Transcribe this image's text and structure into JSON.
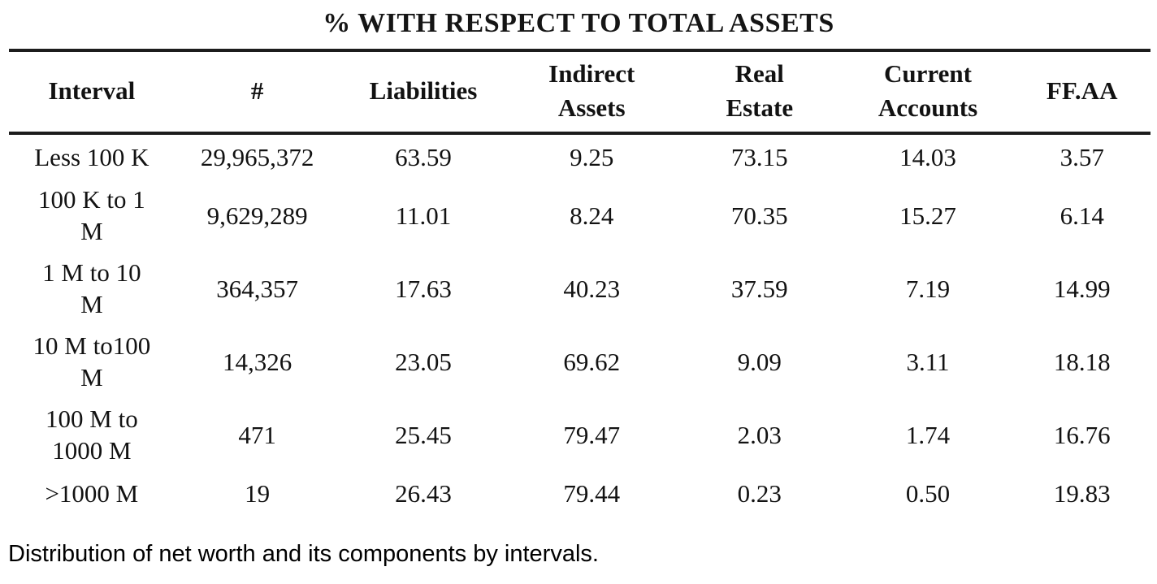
{
  "title": "% WITH RESPECT TO TOTAL ASSETS",
  "caption": "Distribution of net worth and its components by intervals.",
  "table": {
    "columns": [
      {
        "key": "interval",
        "label": "Interval"
      },
      {
        "key": "count",
        "label": "#"
      },
      {
        "key": "liabilities",
        "label": "Liabilities"
      },
      {
        "key": "indirect_assets",
        "label": "Indirect\nAssets"
      },
      {
        "key": "real_estate",
        "label": "Real\nEstate"
      },
      {
        "key": "current_accounts",
        "label": "Current\nAccounts"
      },
      {
        "key": "ffaa",
        "label": "FF.AA"
      }
    ],
    "rows": [
      {
        "lines": 1,
        "interval": "Less 100 K",
        "count": "29,965,372",
        "liabilities": "63.59",
        "indirect_assets": "9.25",
        "real_estate": "73.15",
        "current_accounts": "14.03",
        "ffaa": "3.57"
      },
      {
        "lines": 2,
        "interval": "100 K to 1\nM",
        "count": "9,629,289",
        "liabilities": "11.01",
        "indirect_assets": "8.24",
        "real_estate": "70.35",
        "current_accounts": "15.27",
        "ffaa": "6.14"
      },
      {
        "lines": 2,
        "interval": "1 M to 10\nM",
        "count": "364,357",
        "liabilities": "17.63",
        "indirect_assets": "40.23",
        "real_estate": "37.59",
        "current_accounts": "7.19",
        "ffaa": "14.99"
      },
      {
        "lines": 2,
        "interval": "10 M to100\nM",
        "count": "14,326",
        "liabilities": "23.05",
        "indirect_assets": "69.62",
        "real_estate": "9.09",
        "current_accounts": "3.11",
        "ffaa": "18.18"
      },
      {
        "lines": 2,
        "interval": "100 M to\n1000 M",
        "count": "471",
        "liabilities": "25.45",
        "indirect_assets": "79.47",
        "real_estate": "2.03",
        "current_accounts": "1.74",
        "ffaa": "16.76"
      },
      {
        "lines": 1,
        "interval": ">1000 M",
        "count": "19",
        "liabilities": "26.43",
        "indirect_assets": "79.44",
        "real_estate": "0.23",
        "current_accounts": "0.50",
        "ffaa": "19.83"
      }
    ]
  },
  "chart_data": {
    "type": "table",
    "title": "% WITH RESPECT TO TOTAL ASSETS",
    "columns": [
      "Interval",
      "#",
      "Liabilities",
      "Indirect Assets",
      "Real Estate",
      "Current Accounts",
      "FF.AA"
    ],
    "rows": [
      [
        "Less 100 K",
        29965372,
        63.59,
        9.25,
        73.15,
        14.03,
        3.57
      ],
      [
        "100 K to 1 M",
        9629289,
        11.01,
        8.24,
        70.35,
        15.27,
        6.14
      ],
      [
        "1 M to 10 M",
        364357,
        17.63,
        40.23,
        37.59,
        7.19,
        14.99
      ],
      [
        "10 M to 100 M",
        14326,
        23.05,
        69.62,
        9.09,
        3.11,
        18.18
      ],
      [
        "100 M to 1000 M",
        471,
        25.45,
        79.47,
        2.03,
        1.74,
        16.76
      ],
      [
        ">1000 M",
        19,
        26.43,
        79.44,
        0.23,
        0.5,
        19.83
      ]
    ],
    "caption": "Distribution of net worth and its components by intervals."
  }
}
